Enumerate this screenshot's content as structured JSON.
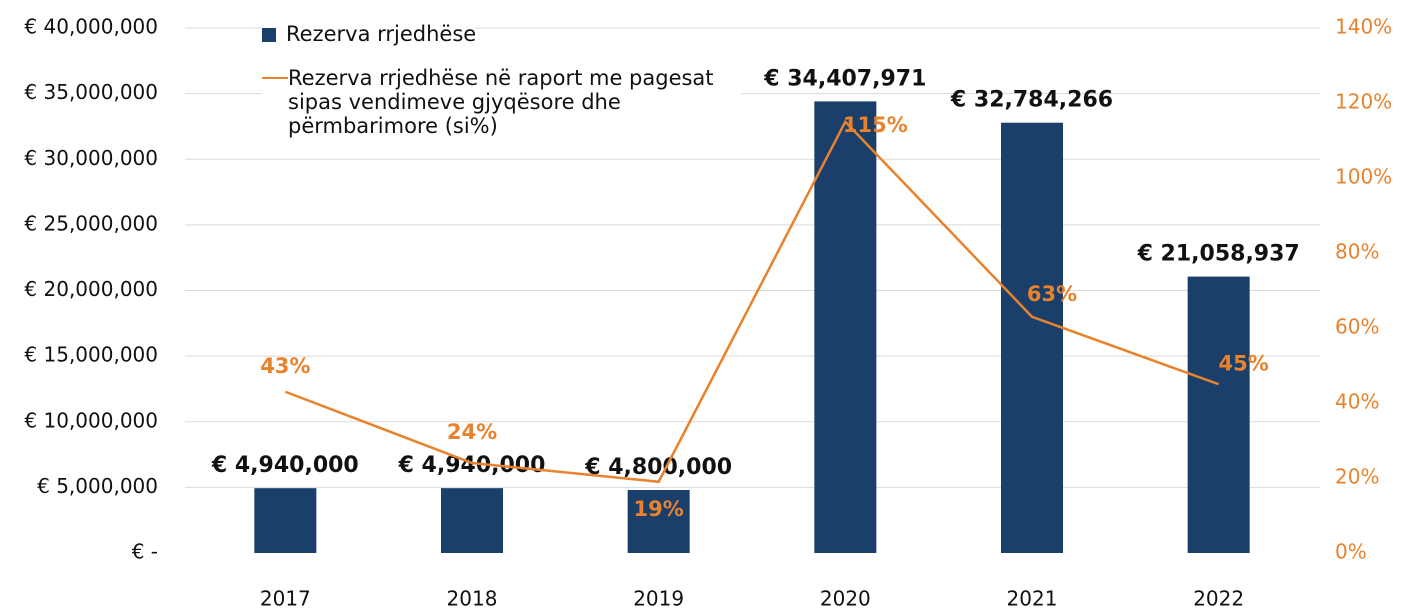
{
  "chart_data": {
    "type": "bar-line",
    "categories": [
      "2017",
      "2018",
      "2019",
      "2020",
      "2021",
      "2022"
    ],
    "series": [
      {
        "name": "Rezerva rrjedhëse",
        "color": "#1b3f6b",
        "type": "bar",
        "values": [
          4940000,
          4940000,
          4800000,
          34407971,
          32784266,
          21058937
        ],
        "value_labels": [
          "€ 4,940,000",
          "€ 4,940,000",
          "€ 4,800,000",
          "€ 34,407,971",
          "€ 32,784,266",
          "€ 21,058,937"
        ]
      },
      {
        "name": "Rezerva rrjedhëse në raport me pagesat sipas vendimeve gjyqësore dhe përmbarimore (si%)",
        "color": "#e8822d",
        "type": "line",
        "axis": "y2",
        "values": [
          43,
          24,
          19,
          115,
          63,
          45
        ],
        "value_labels": [
          "43%",
          "24%",
          "19%",
          "115%",
          "63%",
          "45%"
        ]
      }
    ],
    "ylim": [
      0,
      40000000
    ],
    "yticks": [
      {
        "value": 0,
        "label": "€  -"
      },
      {
        "value": 5000000,
        "label": "€ 5,000,000"
      },
      {
        "value": 10000000,
        "label": "€ 10,000,000"
      },
      {
        "value": 15000000,
        "label": "€ 15,000,000"
      },
      {
        "value": 20000000,
        "label": "€ 20,000,000"
      },
      {
        "value": 25000000,
        "label": "€ 25,000,000"
      },
      {
        "value": 30000000,
        "label": "€ 30,000,000"
      },
      {
        "value": 35000000,
        "label": "€ 35,000,000"
      },
      {
        "value": 40000000,
        "label": "€ 40,000,000"
      }
    ],
    "y2lim": [
      0,
      140
    ],
    "y2ticks": [
      {
        "value": 0,
        "label": "0%"
      },
      {
        "value": 20,
        "label": "20%"
      },
      {
        "value": 40,
        "label": "40%"
      },
      {
        "value": 60,
        "label": "60%"
      },
      {
        "value": 80,
        "label": "80%"
      },
      {
        "value": 100,
        "label": "100%"
      },
      {
        "value": 120,
        "label": "120%"
      },
      {
        "value": 140,
        "label": "140%"
      }
    ],
    "grid": true,
    "legend": "top-left"
  }
}
